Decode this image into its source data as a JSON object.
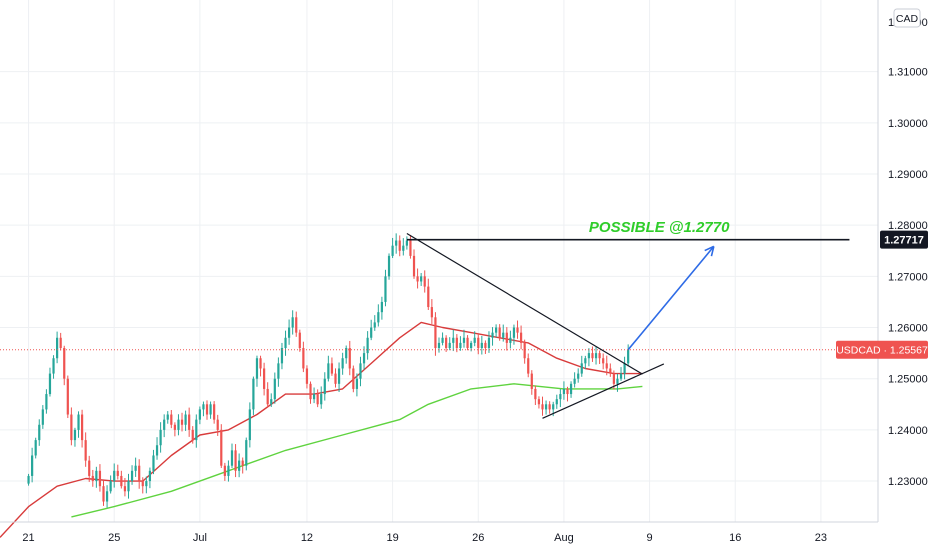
{
  "chart_data": {
    "type": "candlestick",
    "symbol": "USDCAD",
    "currency_badge": "CAD",
    "last_price": 1.25567,
    "last_price_label": "USDCAD · 1.25567",
    "target_price_label": "1.27717",
    "annotation": "POSSIBLE @1.2770",
    "top_tick_label": "1.32000",
    "ylim": [
      1.222,
      1.324
    ],
    "y_ticks": [
      {
        "value": 1.31,
        "label": "1.31000"
      },
      {
        "value": 1.3,
        "label": "1.30000"
      },
      {
        "value": 1.29,
        "label": "1.29000"
      },
      {
        "value": 1.28,
        "label": "1.28000"
      },
      {
        "value": 1.27,
        "label": "1.27000"
      },
      {
        "value": 1.26,
        "label": "1.26000"
      },
      {
        "value": 1.25,
        "label": "1.25000"
      },
      {
        "value": 1.24,
        "label": "1.24000"
      },
      {
        "value": 1.23,
        "label": "1.23000"
      }
    ],
    "x_ticks": [
      {
        "index": 0,
        "label": "21"
      },
      {
        "index": 24,
        "label": "25"
      },
      {
        "index": 48,
        "label": "Jul"
      },
      {
        "index": 78,
        "label": "12"
      },
      {
        "index": 102,
        "label": "19"
      },
      {
        "index": 126,
        "label": "26"
      },
      {
        "index": 150,
        "label": "Aug"
      },
      {
        "index": 174,
        "label": "9"
      },
      {
        "index": 198,
        "label": "16"
      },
      {
        "index": 222,
        "label": "23"
      }
    ],
    "index_range": [
      -8,
      238
    ],
    "closes": [
      1.231,
      1.235,
      1.238,
      1.241,
      1.244,
      1.247,
      1.251,
      1.254,
      1.258,
      1.256,
      1.25,
      1.243,
      1.238,
      1.24,
      1.243,
      1.238,
      1.234,
      1.231,
      1.23,
      1.232,
      1.229,
      1.226,
      1.228,
      1.23,
      1.232,
      1.231,
      1.229,
      1.228,
      1.23,
      1.232,
      1.233,
      1.23,
      1.229,
      1.23,
      1.232,
      1.235,
      1.237,
      1.24,
      1.242,
      1.243,
      1.241,
      1.24,
      1.242,
      1.241,
      1.243,
      1.24,
      1.238,
      1.242,
      1.244,
      1.245,
      1.243,
      1.245,
      1.242,
      1.24,
      1.233,
      1.231,
      1.233,
      1.236,
      1.232,
      1.234,
      1.233,
      1.238,
      1.244,
      1.25,
      1.254,
      1.252,
      1.248,
      1.245,
      1.246,
      1.25,
      1.253,
      1.256,
      1.258,
      1.26,
      1.262,
      1.259,
      1.256,
      1.252,
      1.249,
      1.246,
      1.247,
      1.245,
      1.247,
      1.25,
      1.253,
      1.251,
      1.249,
      1.252,
      1.254,
      1.256,
      1.252,
      1.248,
      1.25,
      1.253,
      1.255,
      1.258,
      1.26,
      1.261,
      1.263,
      1.265,
      1.27,
      1.274,
      1.276,
      1.277,
      1.275,
      1.276,
      1.277,
      1.274,
      1.27,
      1.269,
      1.27,
      1.268,
      1.264,
      1.262,
      1.256,
      1.257,
      1.258,
      1.256,
      1.257,
      1.258,
      1.256,
      1.257,
      1.258,
      1.256,
      1.257,
      1.258,
      1.256,
      1.257,
      1.256,
      1.258,
      1.259,
      1.26,
      1.258,
      1.259,
      1.257,
      1.258,
      1.26,
      1.259,
      1.257,
      1.254,
      1.251,
      1.248,
      1.246,
      1.245,
      1.244,
      1.245,
      1.244,
      1.245,
      1.246,
      1.247,
      1.248,
      1.247,
      1.249,
      1.25,
      1.251,
      1.253,
      1.254,
      1.255,
      1.254,
      1.255,
      1.254,
      1.253,
      1.252,
      1.251,
      1.249,
      1.25,
      1.251,
      1.253,
      1.2557
    ],
    "ma_red": [
      [
        -8,
        1.219
      ],
      [
        0,
        1.225
      ],
      [
        8,
        1.229
      ],
      [
        16,
        1.2305
      ],
      [
        24,
        1.23
      ],
      [
        32,
        1.23
      ],
      [
        40,
        1.235
      ],
      [
        48,
        1.239
      ],
      [
        56,
        1.24
      ],
      [
        64,
        1.243
      ],
      [
        72,
        1.247
      ],
      [
        80,
        1.247
      ],
      [
        88,
        1.248
      ],
      [
        96,
        1.253
      ],
      [
        104,
        1.258
      ],
      [
        110,
        1.261
      ],
      [
        116,
        1.26
      ],
      [
        124,
        1.259
      ],
      [
        132,
        1.258
      ],
      [
        140,
        1.257
      ],
      [
        148,
        1.254
      ],
      [
        156,
        1.252
      ],
      [
        164,
        1.251
      ],
      [
        172,
        1.251
      ]
    ],
    "ma_green": [
      [
        12,
        1.223
      ],
      [
        24,
        1.225
      ],
      [
        40,
        1.228
      ],
      [
        56,
        1.232
      ],
      [
        72,
        1.236
      ],
      [
        88,
        1.239
      ],
      [
        104,
        1.242
      ],
      [
        112,
        1.245
      ],
      [
        124,
        1.248
      ],
      [
        136,
        1.249
      ],
      [
        150,
        1.248
      ],
      [
        165,
        1.248
      ],
      [
        172,
        1.2485
      ]
    ],
    "lines": [
      {
        "name": "resistance",
        "from": [
          106,
          1.27837
        ],
        "to": [
          172,
          1.25089
        ]
      },
      {
        "name": "support",
        "from": [
          144,
          1.24227
        ],
        "to": [
          178,
          1.25288
        ]
      },
      {
        "name": "target-level",
        "from": [
          106,
          1.27717
        ],
        "to": [
          230,
          1.27717
        ]
      }
    ],
    "arrow": {
      "from": [
        168,
        1.25567
      ],
      "to": [
        192,
        1.27585
      ]
    },
    "annotation_at": [
      157,
      1.2787
    ],
    "last_price_line": 1.25567,
    "colors": {
      "up": "#26a69a",
      "down": "#ef5350",
      "ma_red": "#d83b3b",
      "ma_green": "#5fd33f",
      "arrow": "#2e6be6",
      "annotation": "#2fcd2a",
      "trendline": "#131722",
      "last_price_line": "#ef5350"
    }
  }
}
